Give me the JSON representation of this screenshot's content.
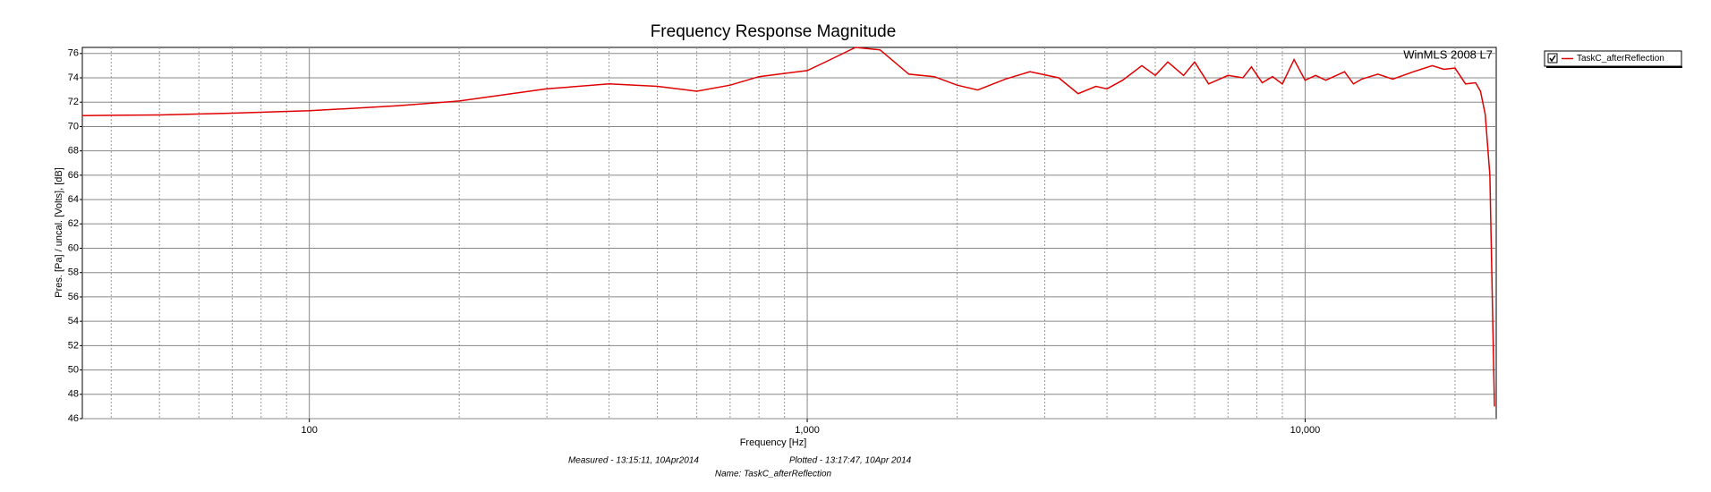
{
  "chart_data": {
    "type": "line",
    "title": "Frequency Response Magnitude",
    "annotation": "WinMLS 2008 L7",
    "x_label": "Frequency [Hz]",
    "y_label": "Pres. [Pa] / uncal. [Volts], [dB]",
    "footer": [
      "Measured - 13:15:11, 10Apr2014",
      "Plotted - 13:17:47, 10Apr 2014",
      "Name: TaskC_afterReflection"
    ],
    "xscale": "log",
    "xlim": [
      35,
      24200
    ],
    "ylim": [
      46,
      76.5
    ],
    "xticks": [
      100,
      {
        "value": 1000,
        "label": "1,000"
      },
      {
        "value": 10000,
        "label": "10,000"
      }
    ],
    "xminor": [
      40,
      50,
      60,
      70,
      80,
      90,
      200,
      300,
      400,
      500,
      600,
      700,
      800,
      900,
      2000,
      3000,
      4000,
      5000,
      6000,
      7000,
      8000,
      9000,
      20000
    ],
    "yticks": [
      46,
      48,
      50,
      52,
      54,
      56,
      58,
      60,
      62,
      64,
      66,
      68,
      70,
      72,
      74,
      76
    ],
    "grid": true,
    "legend": "outside-right",
    "x": [
      35,
      50,
      70,
      100,
      150,
      200,
      300,
      400,
      500,
      600,
      700,
      800,
      1000,
      1100,
      1250,
      1400,
      1600,
      1800,
      2000,
      2200,
      2500,
      2800,
      3200,
      3500,
      3800,
      4000,
      4300,
      4700,
      5000,
      5300,
      5700,
      6000,
      6400,
      7000,
      7500,
      7800,
      8200,
      8600,
      9000,
      9500,
      10000,
      10500,
      11000,
      12000,
      12500,
      13000,
      14000,
      15000,
      16500,
      18000,
      19000,
      20000,
      21000,
      22000,
      22500,
      23000,
      23500,
      24000
    ],
    "series": [
      {
        "name": "TaskC_afterReflection",
        "color": "#e00000",
        "values": [
          70.9,
          70.95,
          71.1,
          71.3,
          71.7,
          72.1,
          73.1,
          73.5,
          73.3,
          72.9,
          73.4,
          74.1,
          74.6,
          75.4,
          76.5,
          76.3,
          74.3,
          74.1,
          73.4,
          73.0,
          73.9,
          74.5,
          74.0,
          72.7,
          73.3,
          73.1,
          73.8,
          75.0,
          74.2,
          75.3,
          74.2,
          75.3,
          73.5,
          74.2,
          74.0,
          74.9,
          73.6,
          74.1,
          73.5,
          75.5,
          73.8,
          74.2,
          73.8,
          74.5,
          73.5,
          73.9,
          74.3,
          73.9,
          74.5,
          75.0,
          74.7,
          74.8,
          73.5,
          73.6,
          72.9,
          71.0,
          66.0,
          47.0
        ]
      }
    ]
  }
}
